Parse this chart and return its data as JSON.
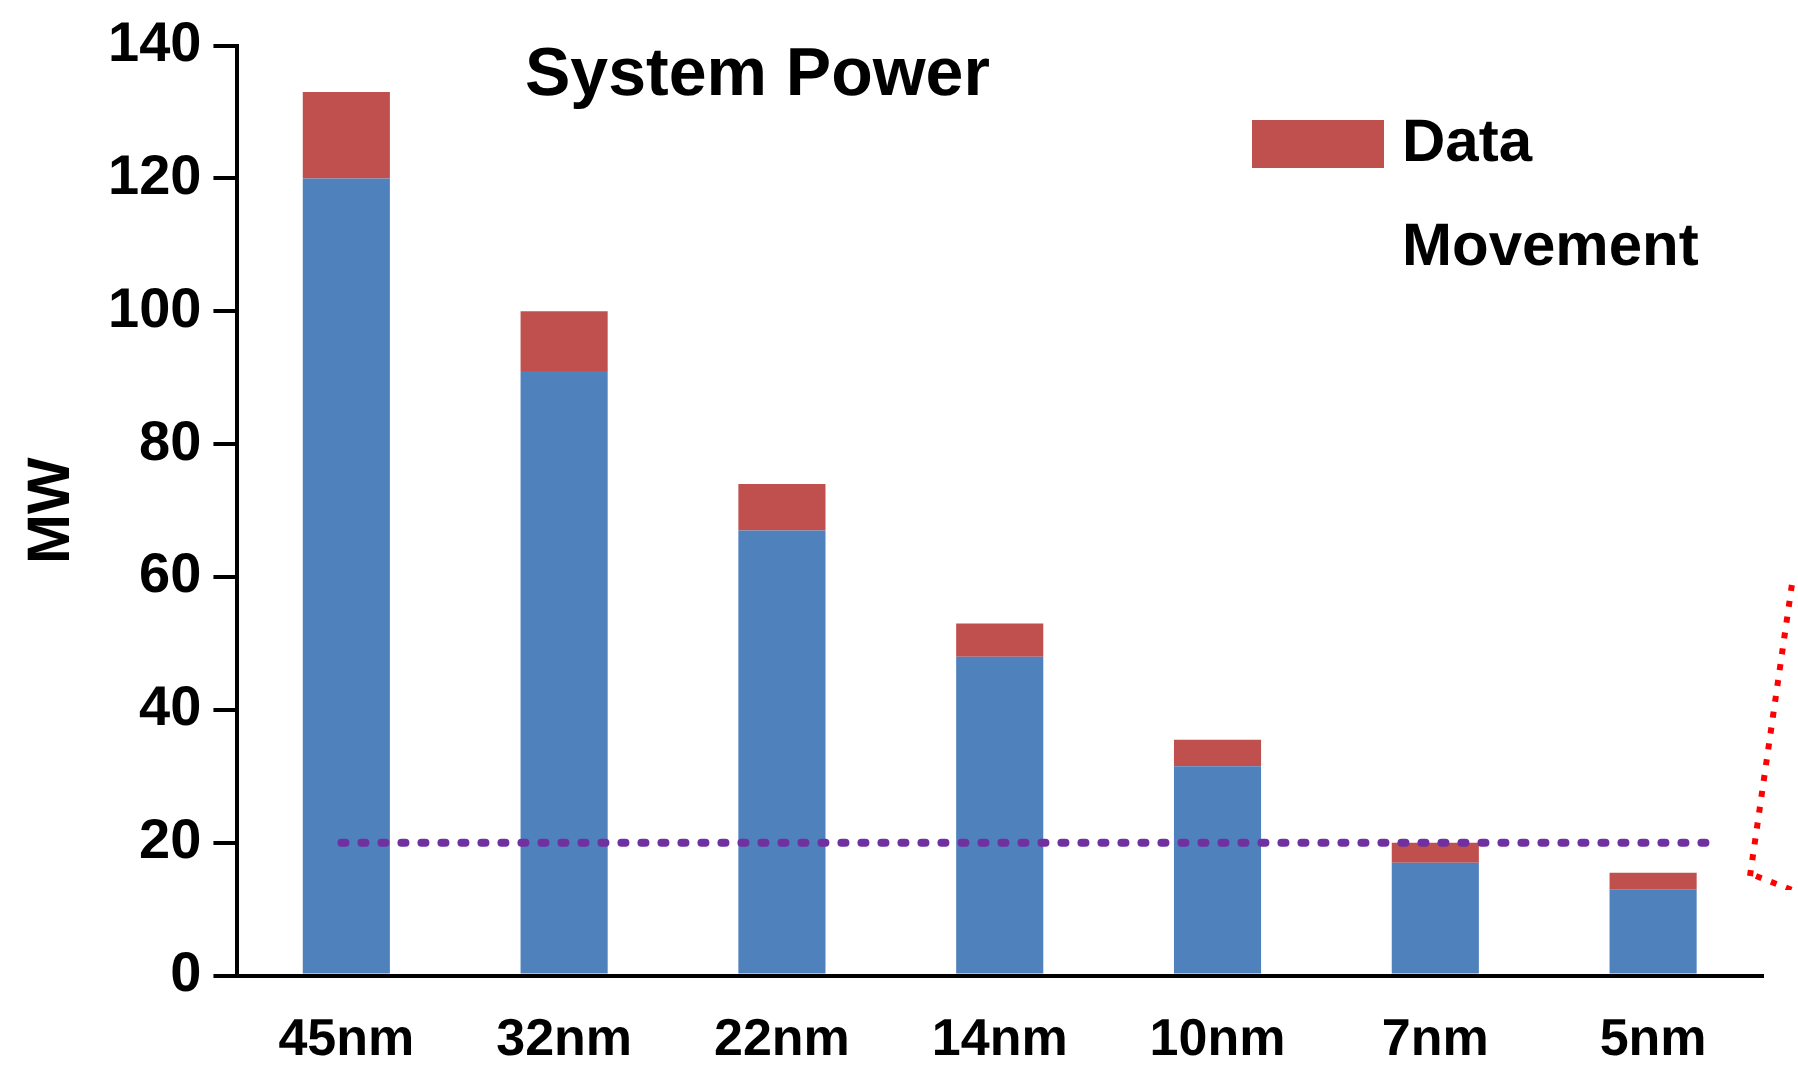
{
  "chart_data": {
    "type": "bar",
    "title": "System Power",
    "ylabel": "MW",
    "categories": [
      "45nm",
      "32nm",
      "22nm",
      "14nm",
      "10nm",
      "7nm",
      "5nm"
    ],
    "stacked": true,
    "series": [
      {
        "color": "#4f81bd",
        "values": [
          120,
          91,
          67,
          48,
          31.5,
          17,
          13
        ]
      },
      {
        "name": "Data Movement",
        "color": "#c0504d",
        "values": [
          13,
          9,
          7,
          5,
          4,
          3,
          2.5
        ]
      }
    ],
    "ylim": [
      0,
      140
    ],
    "yticks": [
      0,
      20,
      40,
      60,
      80,
      100,
      120,
      140
    ],
    "grid": false,
    "legend": "top right",
    "ref_lines": [
      {
        "axis": "y",
        "value": 20,
        "color": "#7030a0",
        "line_style": "dotted"
      }
    ]
  }
}
